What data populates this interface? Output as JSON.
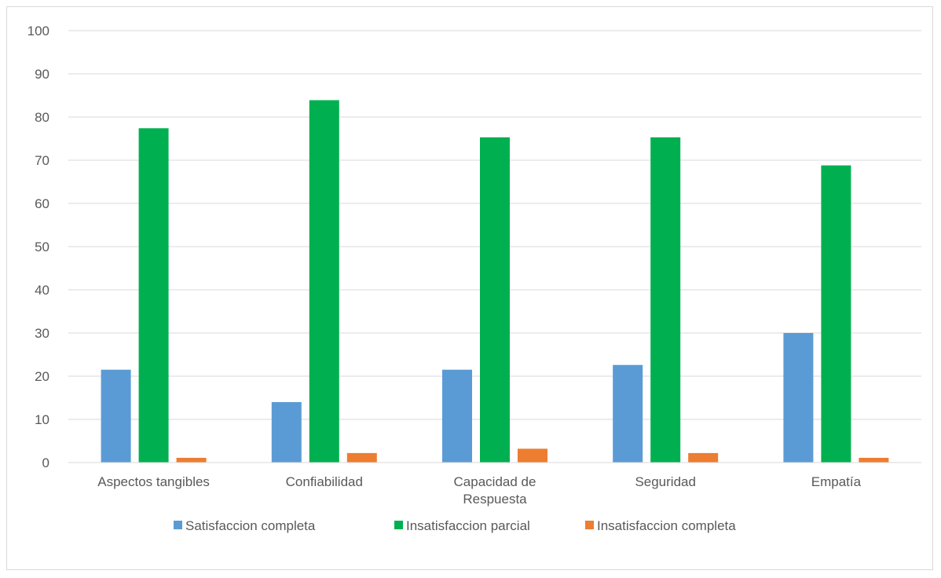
{
  "chart_data": {
    "type": "bar",
    "title": "",
    "xlabel": "",
    "ylabel": "",
    "categories": [
      [
        "Aspectos tangibles"
      ],
      [
        "Confiabilidad"
      ],
      [
        "Capacidad de",
        "Respuesta"
      ],
      [
        "Seguridad"
      ],
      [
        "Empatía"
      ]
    ],
    "series": [
      {
        "name": "Satisfaccion completa",
        "color": "#5b9bd5",
        "values": [
          21.5,
          14,
          21.5,
          22.6,
          30
        ]
      },
      {
        "name": "Insatisfaccion parcial",
        "color": "#00b050",
        "values": [
          77.4,
          83.9,
          75.3,
          75.3,
          68.8
        ]
      },
      {
        "name": "Insatisfaccion completa",
        "color": "#ed7d31",
        "values": [
          1.1,
          2.2,
          3.2,
          2.2,
          1.1
        ]
      }
    ],
    "ylim": [
      0,
      100
    ],
    "yticks": [
      "0",
      "10",
      "20",
      "30",
      "40",
      "50",
      "60",
      "70",
      "80",
      "90",
      "100"
    ],
    "grid": true,
    "gridline_color": "#d9d9d9",
    "legend_position": "bottom"
  }
}
